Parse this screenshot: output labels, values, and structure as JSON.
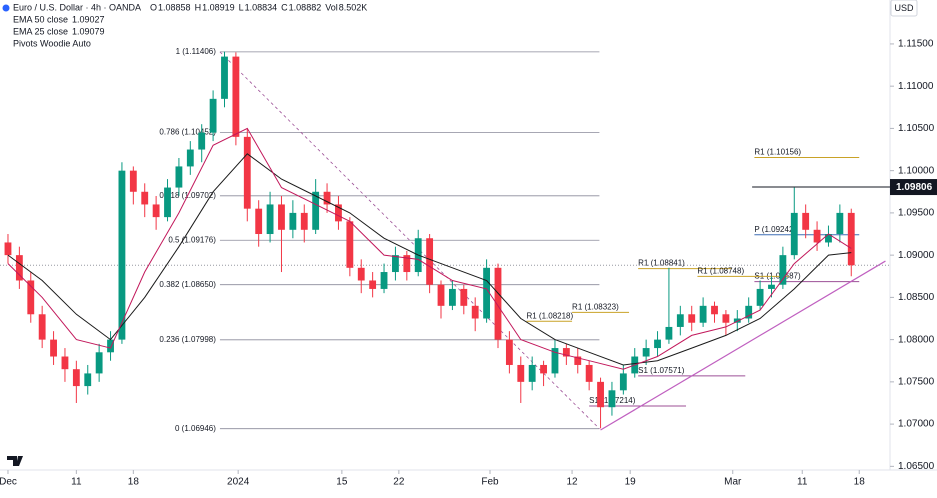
{
  "header": {
    "symbol": "Euro / U.S. Dollar · 4h · OANDA",
    "ohlc": [
      {
        "label": "O",
        "value": "1.08858"
      },
      {
        "label": "H",
        "value": "1.08919"
      },
      {
        "label": "L",
        "value": "1.08834"
      },
      {
        "label": "C",
        "value": "1.08882"
      }
    ],
    "volume": {
      "label": "Vol",
      "value": "8.502K"
    },
    "pivots": "Pivots Woodie Auto",
    "currency": "USD"
  },
  "chart_data": {
    "type": "candlestick",
    "up_color": "#089981",
    "down_color": "#f23645",
    "xlim": [
      -0.7,
      77.4
    ],
    "ylim": [
      1.0622,
      1.1202
    ],
    "grid": false,
    "xticks": [
      {
        "value": 0,
        "label": "Dec"
      },
      {
        "value": 6,
        "label": "11"
      },
      {
        "value": 11,
        "label": "18"
      },
      {
        "value": 20.2,
        "label": "2024"
      },
      {
        "value": 29.3,
        "label": "15"
      },
      {
        "value": 34.3,
        "label": "22"
      },
      {
        "value": 42.3,
        "label": "Feb"
      },
      {
        "value": 49.5,
        "label": "12"
      },
      {
        "value": 54.6,
        "label": "19"
      },
      {
        "value": 63.6,
        "label": "Mar"
      },
      {
        "value": 69.7,
        "label": "11"
      },
      {
        "value": 74.7,
        "label": "18"
      }
    ],
    "yticks": [
      {
        "value": 1.115,
        "label": "1.11500"
      },
      {
        "value": 1.11,
        "label": "1.11000"
      },
      {
        "value": 1.105,
        "label": "1.10500"
      },
      {
        "value": 1.1,
        "label": "1.10000"
      },
      {
        "value": 1.095,
        "label": "1.09500"
      },
      {
        "value": 1.09,
        "label": "1.09000"
      },
      {
        "value": 1.085,
        "label": "1.08500"
      },
      {
        "value": 1.08,
        "label": "1.08000"
      },
      {
        "value": 1.075,
        "label": "1.07500"
      },
      {
        "value": 1.07,
        "label": "1.07000"
      },
      {
        "value": 1.065,
        "label": "1.06500"
      }
    ],
    "candles": {
      "x": [
        0,
        1,
        2,
        3,
        4,
        5,
        6,
        7,
        8,
        9,
        10,
        11,
        12,
        13,
        14,
        15,
        16,
        17,
        18,
        19,
        20,
        21,
        22,
        23,
        24,
        25,
        26,
        27,
        28,
        29,
        30,
        31,
        32,
        33,
        34,
        35,
        36,
        37,
        38,
        39,
        40,
        41,
        42,
        43,
        44,
        45,
        46,
        47,
        48,
        49,
        50,
        51,
        52,
        53,
        54,
        55,
        56,
        57,
        58,
        59,
        60,
        61,
        62,
        63,
        64,
        65,
        66,
        67,
        68,
        69,
        70,
        71,
        72,
        73,
        74
      ],
      "open": [
        1.0915,
        1.09,
        1.087,
        1.083,
        1.08,
        1.078,
        1.0765,
        1.0745,
        1.076,
        1.0785,
        1.08,
        1.1,
        1.0975,
        1.096,
        1.0945,
        1.098,
        1.1005,
        1.1025,
        1.1045,
        1.1085,
        1.1135,
        1.104,
        1.0955,
        1.0925,
        1.096,
        1.093,
        1.095,
        1.093,
        1.0975,
        1.096,
        1.094,
        1.0885,
        1.087,
        1.086,
        1.088,
        1.09,
        1.088,
        1.092,
        1.0865,
        1.084,
        1.086,
        1.084,
        1.0825,
        1.0885,
        1.08,
        1.077,
        1.075,
        1.077,
        1.076,
        1.079,
        1.078,
        1.077,
        1.075,
        1.072,
        1.074,
        1.076,
        1.078,
        1.079,
        1.08,
        1.0815,
        1.083,
        1.082,
        1.084,
        1.083,
        1.082,
        1.0825,
        1.084,
        1.086,
        1.0865,
        1.09,
        1.095,
        1.093,
        1.0915,
        1.0925,
        1.095
      ],
      "high": [
        1.0925,
        1.091,
        1.088,
        1.084,
        1.081,
        1.079,
        1.0775,
        1.077,
        1.0795,
        1.081,
        1.101,
        1.1005,
        1.0985,
        1.097,
        1.099,
        1.1015,
        1.1035,
        1.1055,
        1.1095,
        1.1141,
        1.114,
        1.105,
        1.0965,
        1.0975,
        1.097,
        1.0965,
        1.096,
        1.099,
        1.0985,
        1.097,
        1.0945,
        1.0895,
        1.088,
        1.089,
        1.091,
        1.0905,
        1.093,
        1.0925,
        1.087,
        1.087,
        1.0865,
        1.085,
        1.0895,
        1.089,
        1.081,
        1.078,
        1.078,
        1.0775,
        1.08,
        1.0795,
        1.079,
        1.0775,
        1.0755,
        1.075,
        1.077,
        1.079,
        1.08,
        1.081,
        1.0885,
        1.084,
        1.084,
        1.085,
        1.0845,
        1.0835,
        1.0835,
        1.085,
        1.087,
        1.0875,
        1.091,
        1.098,
        1.096,
        1.094,
        1.0935,
        1.096,
        1.0955
      ],
      "low": [
        1.089,
        1.086,
        1.082,
        1.079,
        1.077,
        1.075,
        1.0725,
        1.0735,
        1.075,
        1.0775,
        1.0795,
        1.096,
        1.0945,
        1.093,
        1.094,
        1.097,
        1.0995,
        1.101,
        1.1035,
        1.1075,
        1.103,
        1.094,
        1.091,
        1.0915,
        1.088,
        1.092,
        1.0915,
        1.0925,
        1.095,
        1.093,
        1.0875,
        1.0855,
        1.085,
        1.0855,
        1.087,
        1.087,
        1.0875,
        1.0855,
        1.0825,
        1.0835,
        1.083,
        1.081,
        1.082,
        1.079,
        1.076,
        1.0725,
        1.074,
        1.0745,
        1.0755,
        1.077,
        1.076,
        1.074,
        1.0695,
        1.071,
        1.0735,
        1.0755,
        1.077,
        1.078,
        1.0795,
        1.0805,
        1.081,
        1.0815,
        1.082,
        1.0805,
        1.081,
        1.082,
        1.0835,
        1.085,
        1.086,
        1.0895,
        1.092,
        1.0905,
        1.091,
        1.0915,
        1.0875
      ],
      "close": [
        1.09,
        1.087,
        1.083,
        1.08,
        1.078,
        1.0765,
        1.0745,
        1.076,
        1.0785,
        1.08,
        1.1,
        1.0975,
        1.096,
        1.0945,
        1.098,
        1.1005,
        1.1025,
        1.1045,
        1.1085,
        1.1135,
        1.104,
        1.0955,
        1.0925,
        1.096,
        1.093,
        1.095,
        1.093,
        1.0975,
        1.096,
        1.094,
        1.0885,
        1.087,
        1.086,
        1.088,
        1.09,
        1.088,
        1.092,
        1.0865,
        1.084,
        1.086,
        1.084,
        1.0825,
        1.0885,
        1.08,
        1.077,
        1.075,
        1.077,
        1.076,
        1.079,
        1.078,
        1.077,
        1.075,
        1.072,
        1.074,
        1.076,
        1.078,
        1.079,
        1.08,
        1.0815,
        1.083,
        1.082,
        1.084,
        1.083,
        1.082,
        1.0825,
        1.084,
        1.086,
        1.0865,
        1.09,
        1.095,
        1.093,
        1.0915,
        1.0925,
        1.095,
        1.0888
      ]
    },
    "series": [
      {
        "name": "EMA 50 close",
        "last": "1.09027",
        "color": "#1a1a1a",
        "x": [
          0,
          3,
          6,
          9,
          12,
          15,
          18,
          21,
          24,
          27,
          30,
          33,
          36,
          39,
          42,
          45,
          48,
          51,
          54,
          57,
          60,
          63,
          66,
          69,
          72,
          74
        ],
        "values": [
          1.09,
          1.087,
          1.083,
          1.08,
          1.085,
          1.091,
          1.0975,
          1.102,
          1.099,
          1.097,
          1.095,
          1.092,
          1.09,
          1.0885,
          1.087,
          1.0825,
          1.08,
          1.0785,
          1.077,
          1.0775,
          1.079,
          1.0805,
          1.0825,
          1.086,
          1.09,
          1.0903
        ]
      },
      {
        "name": "EMA 25 close",
        "last": "1.09079",
        "color": "#c2185b",
        "x": [
          0,
          3,
          6,
          9,
          12,
          15,
          18,
          21,
          24,
          27,
          30,
          33,
          36,
          39,
          42,
          45,
          48,
          51,
          54,
          57,
          60,
          63,
          66,
          69,
          72,
          74
        ],
        "values": [
          1.089,
          1.085,
          1.08,
          1.079,
          1.088,
          1.095,
          1.103,
          1.105,
          1.098,
          1.096,
          1.094,
          1.09,
          1.0895,
          1.087,
          1.086,
          1.08,
          1.0785,
          1.0775,
          1.0765,
          1.078,
          1.0805,
          1.0815,
          1.0835,
          1.089,
          1.0925,
          1.0908
        ]
      }
    ],
    "fib": {
      "x": [
        18.6,
        51.9
      ],
      "color": "#9c4f96",
      "levels": [
        {
          "value": 1.11406,
          "label": "1 (1.11406)"
        },
        {
          "value": 1.10452,
          "label": "0.786 (1.10452)"
        },
        {
          "value": 1.09702,
          "label": "0.618 (1.09702)"
        },
        {
          "value": 1.09176,
          "label": "0.5 (1.09176)"
        },
        {
          "value": 1.0865,
          "label": "0.382 (1.08650)"
        },
        {
          "value": 1.07998,
          "label": "0.236 (1.07998)"
        },
        {
          "value": 1.06946,
          "label": "0 (1.06946)"
        }
      ]
    },
    "pivots": [
      {
        "label": "R1 (1.10156)",
        "value": 1.10156,
        "x": [
          65.5,
          74.7
        ],
        "color": "#c9a227"
      },
      {
        "label": "P (1.09242)",
        "value": 1.09242,
        "x": [
          65.5,
          74.7
        ],
        "color": "#3f6fb5"
      },
      {
        "label": "S1 (1.08687)",
        "value": 1.08687,
        "x": [
          65.5,
          74.7
        ],
        "color": "#9c4f96"
      },
      {
        "label": "R1 (1.08841)",
        "value": 1.08841,
        "x": [
          55.3,
          63.5
        ],
        "color": "#c9a227"
      },
      {
        "label": "R1 (1.08748)",
        "value": 1.08748,
        "x": [
          60.5,
          68.5
        ],
        "color": "#c9a227"
      },
      {
        "label": "R1 (1.08323)",
        "value": 1.08323,
        "x": [
          49.5,
          54.5
        ],
        "color": "#c9a227"
      },
      {
        "label": "R1 (1.08218)",
        "value": 1.08218,
        "x": [
          45.5,
          49.5
        ],
        "color": "#c9a227"
      },
      {
        "label": "S1 (1.07571)",
        "value": 1.07571,
        "x": [
          55.3,
          64.7
        ],
        "color": "#9c4f96"
      },
      {
        "label": "S1 (1.07214)",
        "value": 1.07214,
        "x": [
          51,
          59.5
        ],
        "color": "#9c4f96"
      }
    ],
    "trendline": {
      "x": [
        52,
        77
      ],
      "y": [
        1.0693,
        1.0893
      ],
      "color": "#c060c0"
    },
    "resistance": {
      "value": 1.09806,
      "x_start": 65.3
    }
  }
}
